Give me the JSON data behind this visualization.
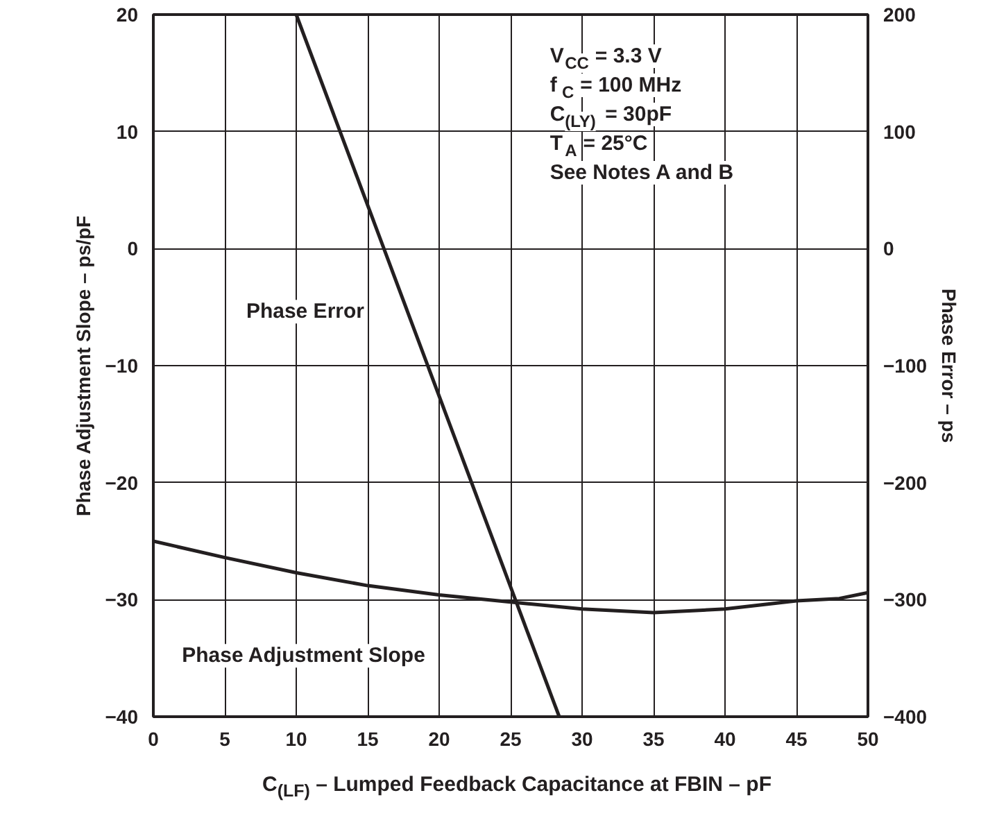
{
  "chart_data": {
    "type": "line",
    "xlabel": "C$_{(LF)}$ – Lumped Feedback Capacitance at FBIN – pF",
    "ylabel": "Phase Adjustment Slope – ps/pF",
    "y2label": "Phase Error – ps",
    "annotations": [
      "V$_{CC}$ = 3.3 V",
      "f$_{C}$ = 100 MHz",
      "C$_{(LY)}$ = 30pF",
      "T$_{A}$ = 25°C",
      "See Notes A and B"
    ],
    "series": [
      {
        "name": "Phase Error",
        "color": "#231f20",
        "axis": "y2",
        "x": [
          10,
          28.4
        ],
        "values": [
          200,
          -400
        ]
      },
      {
        "name": "Phase Adjustment Slope",
        "color": "#231f20",
        "x": [
          0,
          5,
          10,
          15,
          20,
          25,
          30,
          35,
          40,
          45,
          48,
          50
        ],
        "values": [
          -25,
          -26.4,
          -27.7,
          -28.8,
          -29.6,
          -30.2,
          -30.8,
          -31.1,
          -30.8,
          -30.1,
          -29.9,
          -29.4
        ]
      }
    ],
    "xlim": [
      0,
      50
    ],
    "xticks": [
      0,
      5,
      10,
      15,
      20,
      25,
      30,
      35,
      40,
      45,
      50
    ],
    "ylim": [
      -40,
      20
    ],
    "yticks": [
      -40,
      -30,
      -20,
      -10,
      0,
      10,
      20
    ],
    "y2lim": [
      -400,
      200
    ],
    "y2ticks": [
      -400,
      -300,
      -200,
      -100,
      0,
      100,
      200
    ],
    "grid": true,
    "legend": false,
    "line_style": "solid",
    "marker": "none"
  }
}
